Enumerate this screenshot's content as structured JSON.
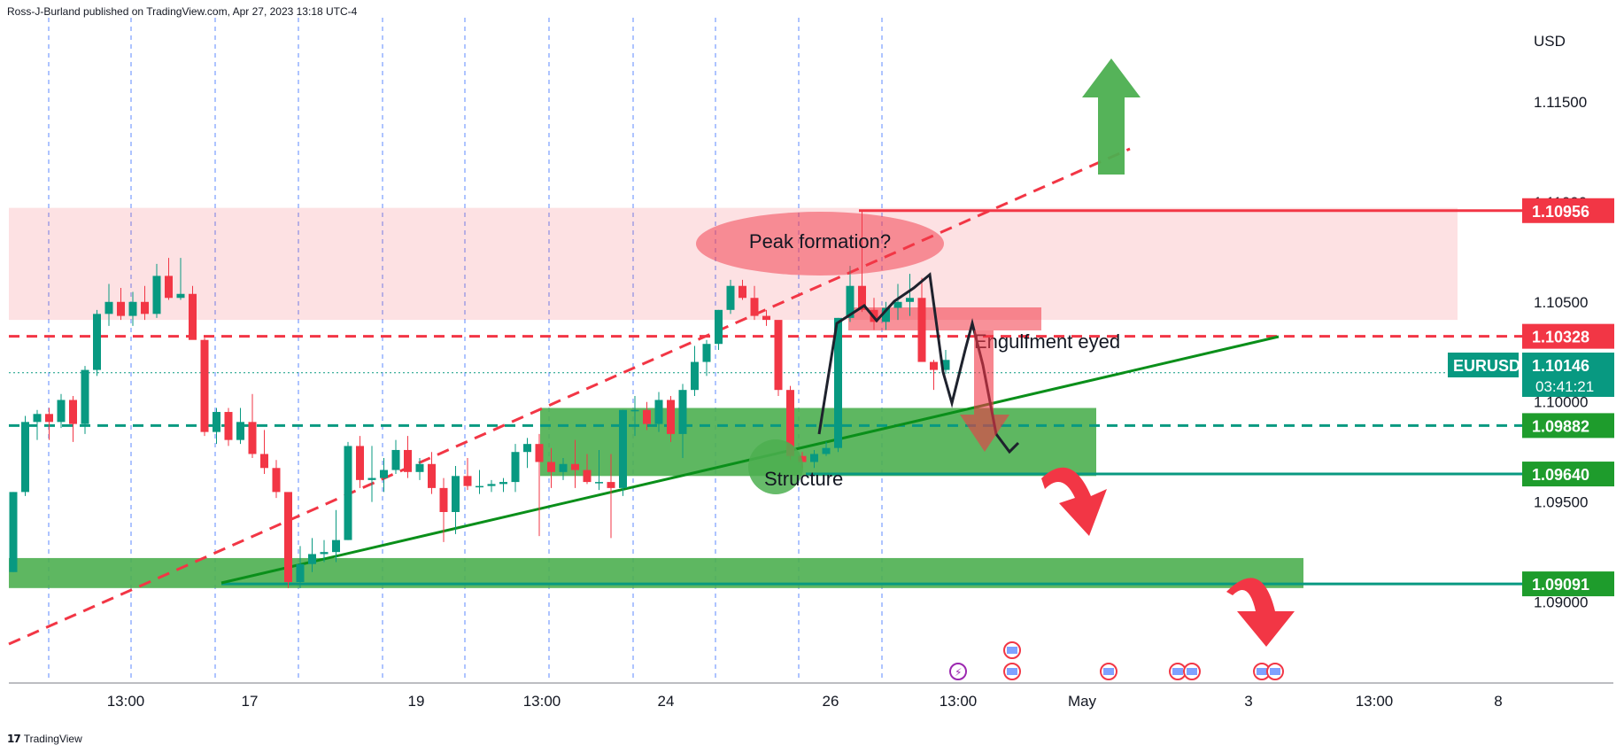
{
  "header": {
    "publisher": "Ross-J-Burland published on TradingView.com, Apr 27, 2023 13:18 UTC-4"
  },
  "footer": {
    "brand": "TradingView"
  },
  "chart_data": {
    "type": "candlestick",
    "symbol": "EURUSD",
    "currency": "USD",
    "ylim": [
      1.086,
      1.1192
    ],
    "y_ticks": [
      "1.11500",
      "1.11000",
      "1.10500",
      "1.10000",
      "1.09500",
      "1.09000"
    ],
    "x_ticks": [
      "13:00",
      "17",
      "19",
      "13:00",
      "24",
      "26",
      "13:00",
      "May",
      "3",
      "13:00",
      "8"
    ],
    "last_price": "1.10146",
    "countdown": "03:41:21",
    "levels": [
      {
        "price": 1.10956,
        "label": "1.10956",
        "style": "solid",
        "color": "#f23645"
      },
      {
        "price": 1.10328,
        "label": "1.10328",
        "style": "dashed",
        "color": "#f23645"
      },
      {
        "price": 1.09882,
        "label": "1.09882",
        "style": "dashed",
        "color": "#089981"
      },
      {
        "price": 1.0964,
        "label": "1.09640",
        "style": "solid",
        "color": "#089981"
      },
      {
        "price": 1.09091,
        "label": "1.09091",
        "style": "solid",
        "color": "#089981"
      }
    ],
    "zones": [
      {
        "name": "resistance-zone",
        "from": 1.1041,
        "to": 1.1097,
        "color": "#f23645"
      },
      {
        "name": "support-zone-upper",
        "from": 1.0963,
        "to": 1.0997,
        "color": "#4caf50"
      },
      {
        "name": "support-zone-lower",
        "from": 1.0907,
        "to": 1.0922,
        "color": "#4caf50"
      }
    ],
    "annotations": [
      "Peak formation?",
      "Engulfment eyed",
      "Structure"
    ],
    "candles": [
      [
        1.0915,
        1.0955,
        1.0915,
        1.0955
      ],
      [
        1.0955,
        1.0993,
        1.0953,
        1.099
      ],
      [
        1.099,
        1.0996,
        1.0981,
        1.0994
      ],
      [
        1.0994,
        1.0997,
        1.0981,
        1.099
      ],
      [
        1.099,
        1.1004,
        1.0987,
        1.1001
      ],
      [
        1.1001,
        1.1003,
        1.098,
        1.0989
      ],
      [
        1.0989,
        1.1018,
        1.0984,
        1.1016
      ],
      [
        1.1016,
        1.1046,
        1.1013,
        1.1044
      ],
      [
        1.1044,
        1.1059,
        1.1038,
        1.105
      ],
      [
        1.105,
        1.1057,
        1.1041,
        1.1043
      ],
      [
        1.1043,
        1.1055,
        1.1038,
        1.105
      ],
      [
        1.105,
        1.1058,
        1.1041,
        1.1044
      ],
      [
        1.1044,
        1.1069,
        1.1042,
        1.1063
      ],
      [
        1.1063,
        1.1072,
        1.1051,
        1.1052
      ],
      [
        1.1052,
        1.1072,
        1.1051,
        1.1054
      ],
      [
        1.1054,
        1.1058,
        1.1032,
        1.1031
      ],
      [
        1.1031,
        1.1032,
        1.0983,
        1.0985
      ],
      [
        1.0985,
        1.0997,
        1.0979,
        1.0995
      ],
      [
        1.0995,
        1.0997,
        1.0978,
        1.0981
      ],
      [
        1.0981,
        1.0997,
        1.0979,
        1.099
      ],
      [
        1.099,
        1.1004,
        1.0972,
        1.0974
      ],
      [
        1.0974,
        1.0986,
        1.0964,
        1.0967
      ],
      [
        1.0967,
        1.0971,
        1.0952,
        1.0955
      ],
      [
        1.0955,
        1.0953,
        1.0907,
        1.091
      ],
      [
        1.091,
        1.0928,
        1.0907,
        1.0919
      ],
      [
        1.0919,
        1.0932,
        1.0915,
        1.0924
      ],
      [
        1.0924,
        1.0931,
        1.092,
        1.0925
      ],
      [
        1.0925,
        1.0946,
        1.092,
        1.0931
      ],
      [
        1.0931,
        1.098,
        1.0931,
        1.0978
      ],
      [
        1.0978,
        1.0983,
        1.0957,
        1.0961
      ],
      [
        1.0961,
        1.0978,
        1.095,
        1.0962
      ],
      [
        1.0962,
        1.0972,
        1.0955,
        1.0966
      ],
      [
        1.0966,
        1.0981,
        1.0964,
        1.0976
      ],
      [
        1.0976,
        1.0983,
        1.0962,
        1.0965
      ],
      [
        1.0965,
        1.0972,
        1.0961,
        1.0969
      ],
      [
        1.0969,
        1.0975,
        1.0954,
        1.0957
      ],
      [
        1.0957,
        1.0962,
        1.093,
        1.0945
      ],
      [
        1.0945,
        1.0968,
        1.0934,
        1.0963
      ],
      [
        1.0963,
        1.0972,
        1.0956,
        1.0958
      ],
      [
        1.0958,
        1.0966,
        1.0954,
        1.0958
      ],
      [
        1.0958,
        1.0961,
        1.0955,
        1.0959
      ],
      [
        1.0959,
        1.0962,
        1.0955,
        1.096
      ],
      [
        1.096,
        1.0979,
        1.0955,
        1.0975
      ],
      [
        1.0975,
        1.0982,
        1.0967,
        1.0979
      ],
      [
        1.0979,
        1.0984,
        1.0933,
        1.097
      ],
      [
        1.097,
        1.0977,
        1.0957,
        1.0965
      ],
      [
        1.0965,
        1.0972,
        1.0961,
        1.0969
      ],
      [
        1.0969,
        1.0981,
        1.0957,
        1.0966
      ],
      [
        1.0966,
        1.0974,
        1.0959,
        1.096
      ],
      [
        1.096,
        1.0976,
        1.0956,
        1.096
      ],
      [
        1.096,
        1.0974,
        1.0932,
        1.0957
      ],
      [
        1.0957,
        1.0996,
        1.0953,
        1.0996
      ],
      [
        1.0996,
        1.1003,
        1.0983,
        1.0996
      ],
      [
        1.0996,
        1.1,
        1.0986,
        1.0989
      ],
      [
        1.0989,
        1.1005,
        1.0985,
        1.1001
      ],
      [
        1.1001,
        1.1003,
        1.098,
        1.0984
      ],
      [
        1.0984,
        1.1009,
        1.0972,
        1.1006
      ],
      [
        1.1006,
        1.1028,
        1.1003,
        1.102
      ],
      [
        1.102,
        1.1031,
        1.1013,
        1.1029
      ],
      [
        1.1029,
        1.1046,
        1.1026,
        1.1046
      ],
      [
        1.1046,
        1.1061,
        1.1044,
        1.1058
      ],
      [
        1.1058,
        1.1061,
        1.1051,
        1.1052
      ],
      [
        1.1052,
        1.1058,
        1.1041,
        1.1043
      ],
      [
        1.1043,
        1.1046,
        1.1038,
        1.1041
      ],
      [
        1.1041,
        1.104,
        1.1003,
        1.1006
      ],
      [
        1.1006,
        1.1008,
        1.0971,
        1.0973
      ],
      [
        1.0973,
        1.0975,
        1.0967,
        1.097
      ],
      [
        1.097,
        1.0976,
        1.0967,
        1.0974
      ],
      [
        1.0974,
        1.098,
        1.0973,
        1.0977
      ],
      [
        1.0977,
        1.1042,
        1.0975,
        1.1042
      ],
      [
        1.1042,
        1.1068,
        1.104,
        1.1058
      ],
      [
        1.1058,
        1.1096,
        1.1045,
        1.1046
      ],
      [
        1.1046,
        1.1052,
        1.1036,
        1.104
      ],
      [
        1.104,
        1.105,
        1.1036,
        1.1047
      ],
      [
        1.1047,
        1.1059,
        1.1041,
        1.105
      ],
      [
        1.105,
        1.1064,
        1.1043,
        1.1052
      ],
      [
        1.1052,
        1.1062,
        1.102,
        1.102
      ],
      [
        1.102,
        1.1021,
        1.1006,
        1.1016
      ],
      [
        1.1016,
        1.1026,
        1.1014,
        1.1021
      ]
    ]
  }
}
